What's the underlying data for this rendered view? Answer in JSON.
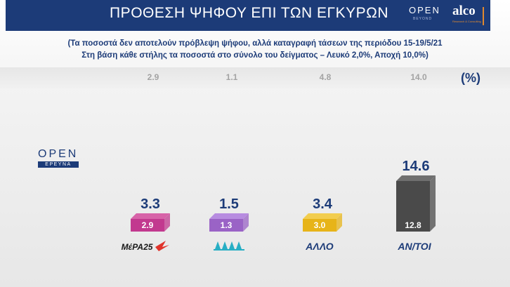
{
  "header": {
    "title": "ΠΡΟΘΕΣΗ ΨΗΦΟΥ ΕΠΙ ΤΩΝ ΕΓΚΥΡΩΝ",
    "brand_open": "OPEN",
    "brand_open_sub": "BEYOND",
    "brand_alco": "alco",
    "brand_alco_sub": "Research & Consulting"
  },
  "subtitle_1": "(Τα ποσοστά δεν αποτελούν πρόβλεψη ψήφου, αλλά καταγραφή τάσεων της περιόδου 15-19/5/21",
  "subtitle_2": "Στη βάση κάθε στήλης τα ποσοστά στο σύνολο του δείγματος – Λευκό 2,0%, Αποχή 10,0%)",
  "percent_sign": "(%)",
  "watermark": {
    "word": "OPEN",
    "tag": "ΕΡΕΥΝΑ"
  },
  "chart_data": {
    "type": "bar",
    "categories": [
      "ΜέΡΑ25",
      "",
      "ΑΛΛΟ",
      "ΑΝ/ΤΟΙ"
    ],
    "previous_values": [
      "2.9",
      "1.1",
      "4.8",
      "14.0"
    ],
    "values": [
      3.3,
      1.5,
      3.4,
      14.6
    ],
    "value_labels": [
      "3.3",
      "1.5",
      "3.4",
      "14.6"
    ],
    "base_values": [
      "2.9",
      "1.3",
      "3.0",
      "12.8"
    ],
    "colors": [
      "#c2398f",
      "#9a63c6",
      "#e7b419",
      "#4a4a4a"
    ],
    "colors_light": [
      "#d763a8",
      "#b78ce0",
      "#f2cd4e",
      "#6f6f6f"
    ],
    "ylim": [
      0,
      16
    ]
  }
}
